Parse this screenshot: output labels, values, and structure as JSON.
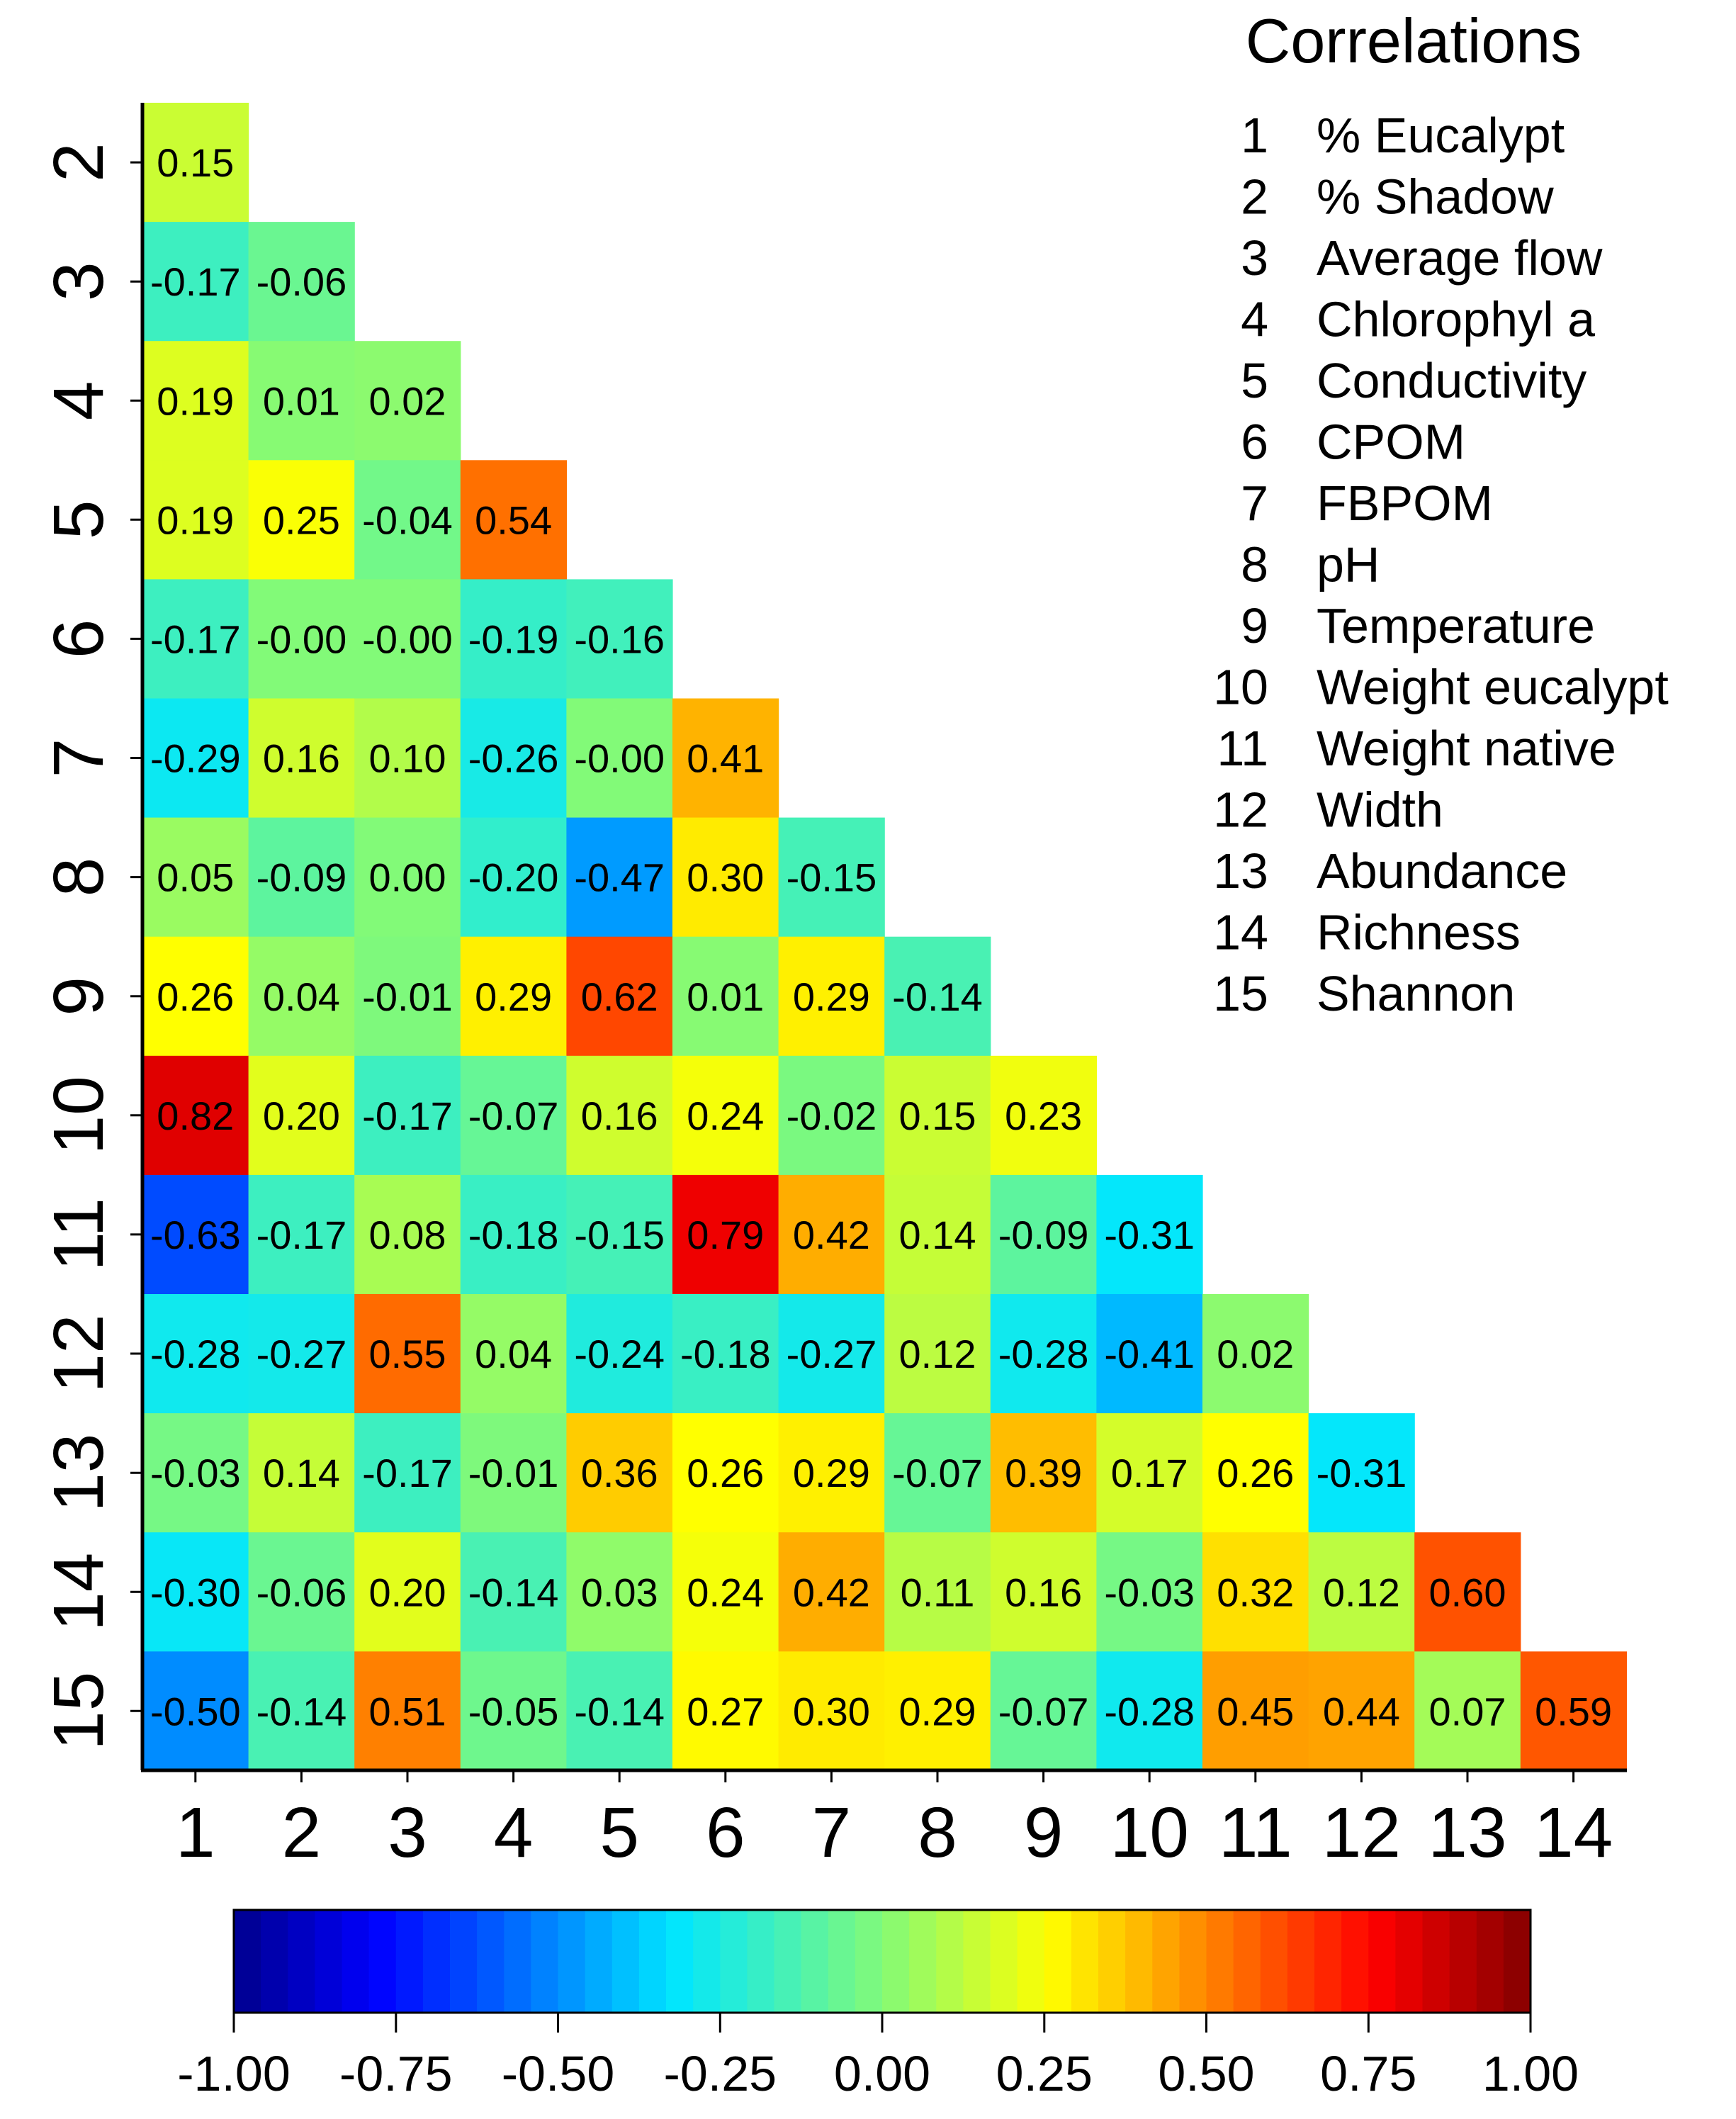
{
  "chart_data": {
    "type": "heatmap",
    "title": "Correlations",
    "x_ticks": [
      "1",
      "2",
      "3",
      "4",
      "5",
      "6",
      "7",
      "8",
      "9",
      "10",
      "11",
      "12",
      "13",
      "14"
    ],
    "y_ticks": [
      "2",
      "3",
      "4",
      "5",
      "6",
      "7",
      "8",
      "9",
      "10",
      "11",
      "12",
      "13",
      "14",
      "15"
    ],
    "variables": [
      {
        "num": "1",
        "name": "% Eucalypt"
      },
      {
        "num": "2",
        "name": "% Shadow"
      },
      {
        "num": "3",
        "name": "Average flow"
      },
      {
        "num": "4",
        "name": "Chlorophyl a"
      },
      {
        "num": "5",
        "name": "Conductivity"
      },
      {
        "num": "6",
        "name": "CPOM"
      },
      {
        "num": "7",
        "name": "FBPOM"
      },
      {
        "num": "8",
        "name": "pH"
      },
      {
        "num": "9",
        "name": "Temperature"
      },
      {
        "num": "10",
        "name": "Weight eucalypt"
      },
      {
        "num": "11",
        "name": "Weight native"
      },
      {
        "num": "12",
        "name": "Width"
      },
      {
        "num": "13",
        "name": "Abundance"
      },
      {
        "num": "14",
        "name": "Richness"
      },
      {
        "num": "15",
        "name": "Shannon"
      }
    ],
    "rows": [
      [
        "0.15"
      ],
      [
        "-0.17",
        "-0.06"
      ],
      [
        "0.19",
        "0.01",
        "0.02"
      ],
      [
        "0.19",
        "0.25",
        "-0.04",
        "0.54"
      ],
      [
        "-0.17",
        "-0.00",
        "-0.00",
        "-0.19",
        "-0.16"
      ],
      [
        "-0.29",
        "0.16",
        "0.10",
        "-0.26",
        "-0.00",
        "0.41"
      ],
      [
        "0.05",
        "-0.09",
        "0.00",
        "-0.20",
        "-0.47",
        "0.30",
        "-0.15"
      ],
      [
        "0.26",
        "0.04",
        "-0.01",
        "0.29",
        "0.62",
        "0.01",
        "0.29",
        "-0.14"
      ],
      [
        "0.82",
        "0.20",
        "-0.17",
        "-0.07",
        "0.16",
        "0.24",
        "-0.02",
        "0.15",
        "0.23"
      ],
      [
        "-0.63",
        "-0.17",
        "0.08",
        "-0.18",
        "-0.15",
        "0.79",
        "0.42",
        "0.14",
        "-0.09",
        "-0.31"
      ],
      [
        "-0.28",
        "-0.27",
        "0.55",
        "0.04",
        "-0.24",
        "-0.18",
        "-0.27",
        "0.12",
        "-0.28",
        "-0.41",
        "0.02"
      ],
      [
        "-0.03",
        "0.14",
        "-0.17",
        "-0.01",
        "0.36",
        "0.26",
        "0.29",
        "-0.07",
        "0.39",
        "0.17",
        "0.26",
        "-0.31"
      ],
      [
        "-0.30",
        "-0.06",
        "0.20",
        "-0.14",
        "0.03",
        "0.24",
        "0.42",
        "0.11",
        "0.16",
        "-0.03",
        "0.32",
        "0.12",
        "0.60"
      ],
      [
        "-0.50",
        "-0.14",
        "0.51",
        "-0.05",
        "-0.14",
        "0.27",
        "0.30",
        "0.29",
        "-0.07",
        "-0.28",
        "0.45",
        "0.44",
        "0.07",
        "0.59"
      ]
    ],
    "colorbar": {
      "range": [
        -1,
        1
      ],
      "ticks": [
        "-1.00",
        "-0.75",
        "-0.50",
        "-0.25",
        "0.00",
        "0.25",
        "0.50",
        "0.75",
        "1.00"
      ],
      "colormap": "jet"
    }
  }
}
